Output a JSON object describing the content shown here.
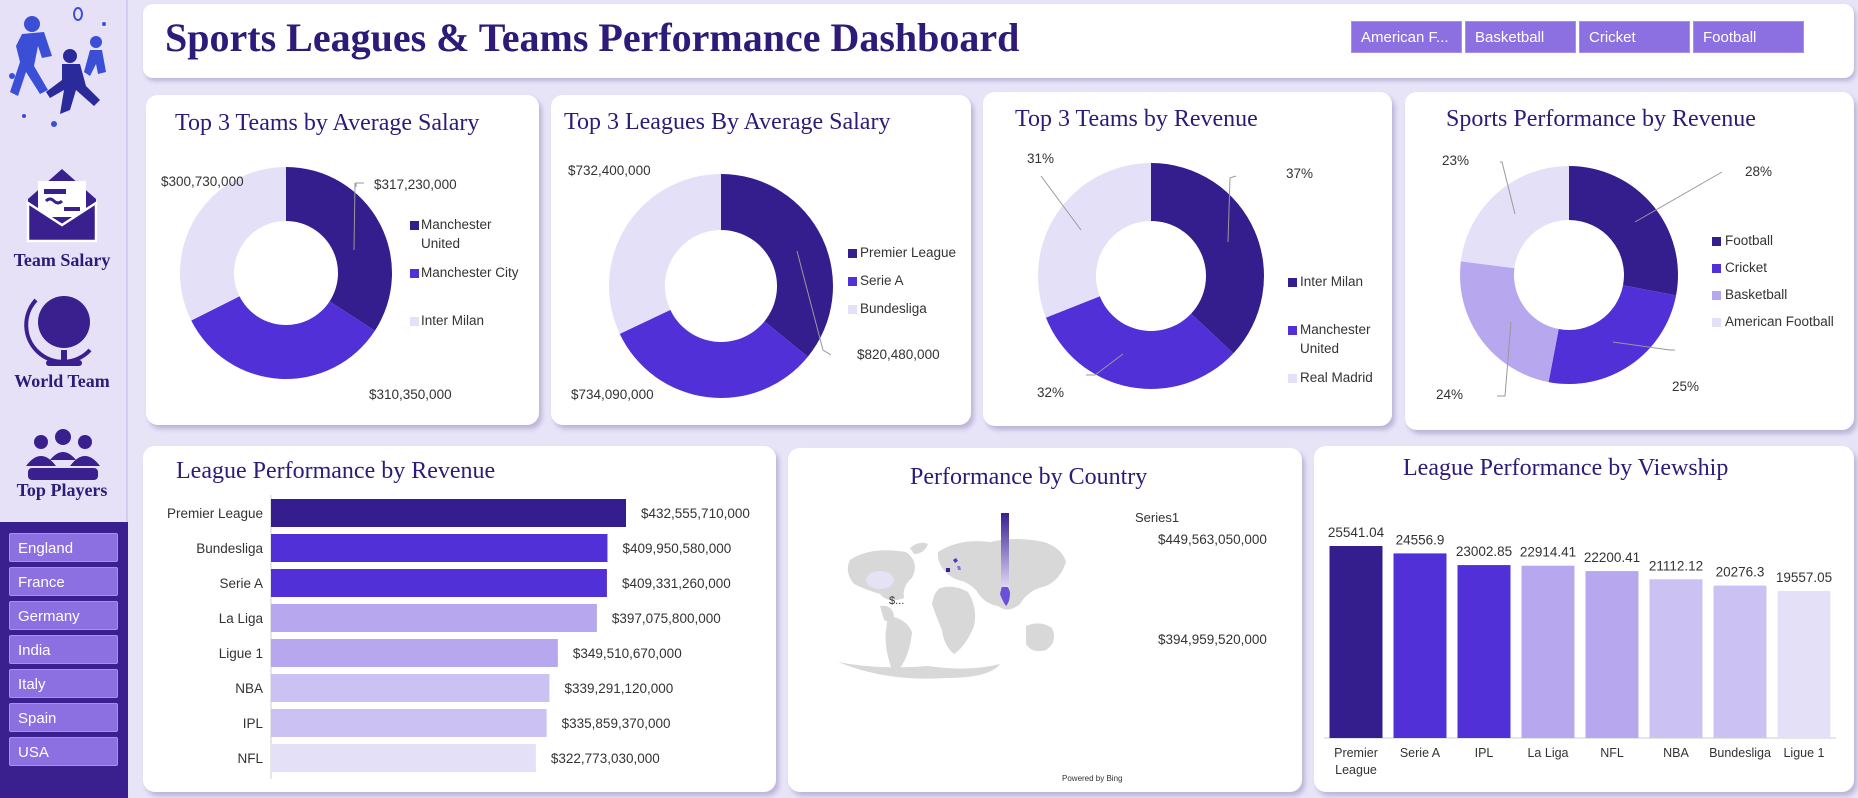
{
  "header": {
    "title": "Sports Leagues & Teams Performance Dashboard",
    "sport_buttons": [
      "American F...",
      "Basketball",
      "Cricket",
      "Football"
    ]
  },
  "sidebar": {
    "nav": [
      {
        "label": "Team Salary",
        "icon": "envelope-icon"
      },
      {
        "label": "World Team",
        "icon": "globe-icon"
      },
      {
        "label": "Top Players",
        "icon": "people-icon"
      }
    ],
    "countries": [
      "England",
      "France",
      "Germany",
      "India",
      "Italy",
      "Spain",
      "USA"
    ]
  },
  "colors": {
    "dark": "#341d8c",
    "mid": "#5230d8",
    "light": "#b6a7ee",
    "pale": "#e4e0f7",
    "accent_button": "#8c6fe0"
  },
  "chart_data": [
    {
      "type": "donut",
      "title": "Top 3 Teams by Average Salary",
      "legend": [
        "Manchester United",
        "Manchester City",
        "Inter Milan"
      ],
      "values": [
        317230000,
        310350000,
        300730000
      ],
      "data_labels": [
        "$317,230,000",
        "$310,350,000",
        "$300,730,000"
      ],
      "legend_position": "right"
    },
    {
      "type": "donut",
      "title": "Top 3 Leagues By Average Salary",
      "legend": [
        "Premier League",
        "Serie A",
        "Bundesliga"
      ],
      "values": [
        820480000,
        734090000,
        732400000
      ],
      "data_labels": [
        "$820,480,000",
        "$734,090,000",
        "$732,400,000"
      ],
      "legend_position": "right"
    },
    {
      "type": "donut",
      "title": "Top 3 Teams by Revenue",
      "legend": [
        "Inter Milan",
        "Manchester United",
        "Real Madrid"
      ],
      "values": [
        37,
        32,
        31
      ],
      "data_labels": [
        "37%",
        "32%",
        "31%"
      ],
      "legend_position": "right"
    },
    {
      "type": "donut",
      "title": "Sports Performance by Revenue",
      "legend": [
        "Football",
        "Cricket",
        "Basketball",
        "American Football"
      ],
      "values": [
        28,
        25,
        24,
        23
      ],
      "data_labels": [
        "28%",
        "25%",
        "24%",
        "23%"
      ],
      "legend_position": "right"
    },
    {
      "type": "bar",
      "orientation": "horizontal",
      "title": "League Performance by Revenue",
      "categories": [
        "Premier League",
        "Bundesliga",
        "Serie A",
        "La Liga",
        "Ligue 1",
        "NBA",
        "IPL",
        "NFL"
      ],
      "values": [
        432555710000,
        409950580000,
        409331260000,
        397075800000,
        349510670000,
        339291120000,
        335859370000,
        322773030000
      ],
      "data_labels": [
        "$432,555,710,000",
        "$409,950,580,000",
        "$409,331,260,000",
        "$397,075,800,000",
        "$349,510,670,000",
        "$339,291,120,000",
        "$335,859,370,000",
        "$322,773,030,000"
      ]
    },
    {
      "type": "map",
      "title": "Performance by Country",
      "legend_title": "Series1",
      "scale_max": "$449,563,050,000",
      "scale_min": "$394,959,520,000",
      "map_label": "$...",
      "credit": "Powered by Bing"
    },
    {
      "type": "bar",
      "orientation": "vertical",
      "title": "League Performance by Viewship",
      "categories": [
        "Premier League",
        "Serie A",
        "IPL",
        "La Liga",
        "NFL",
        "NBA",
        "Bundesliga",
        "Ligue 1"
      ],
      "values": [
        25541.04,
        24556.9,
        23002.85,
        22914.41,
        22200.41,
        21112.12,
        20276.3,
        19557.05
      ],
      "data_labels": [
        "25541.04",
        "24556.9",
        "23002.85",
        "22914.41",
        "22200.41",
        "21112.12",
        "20276.3",
        "19557.05"
      ]
    }
  ]
}
